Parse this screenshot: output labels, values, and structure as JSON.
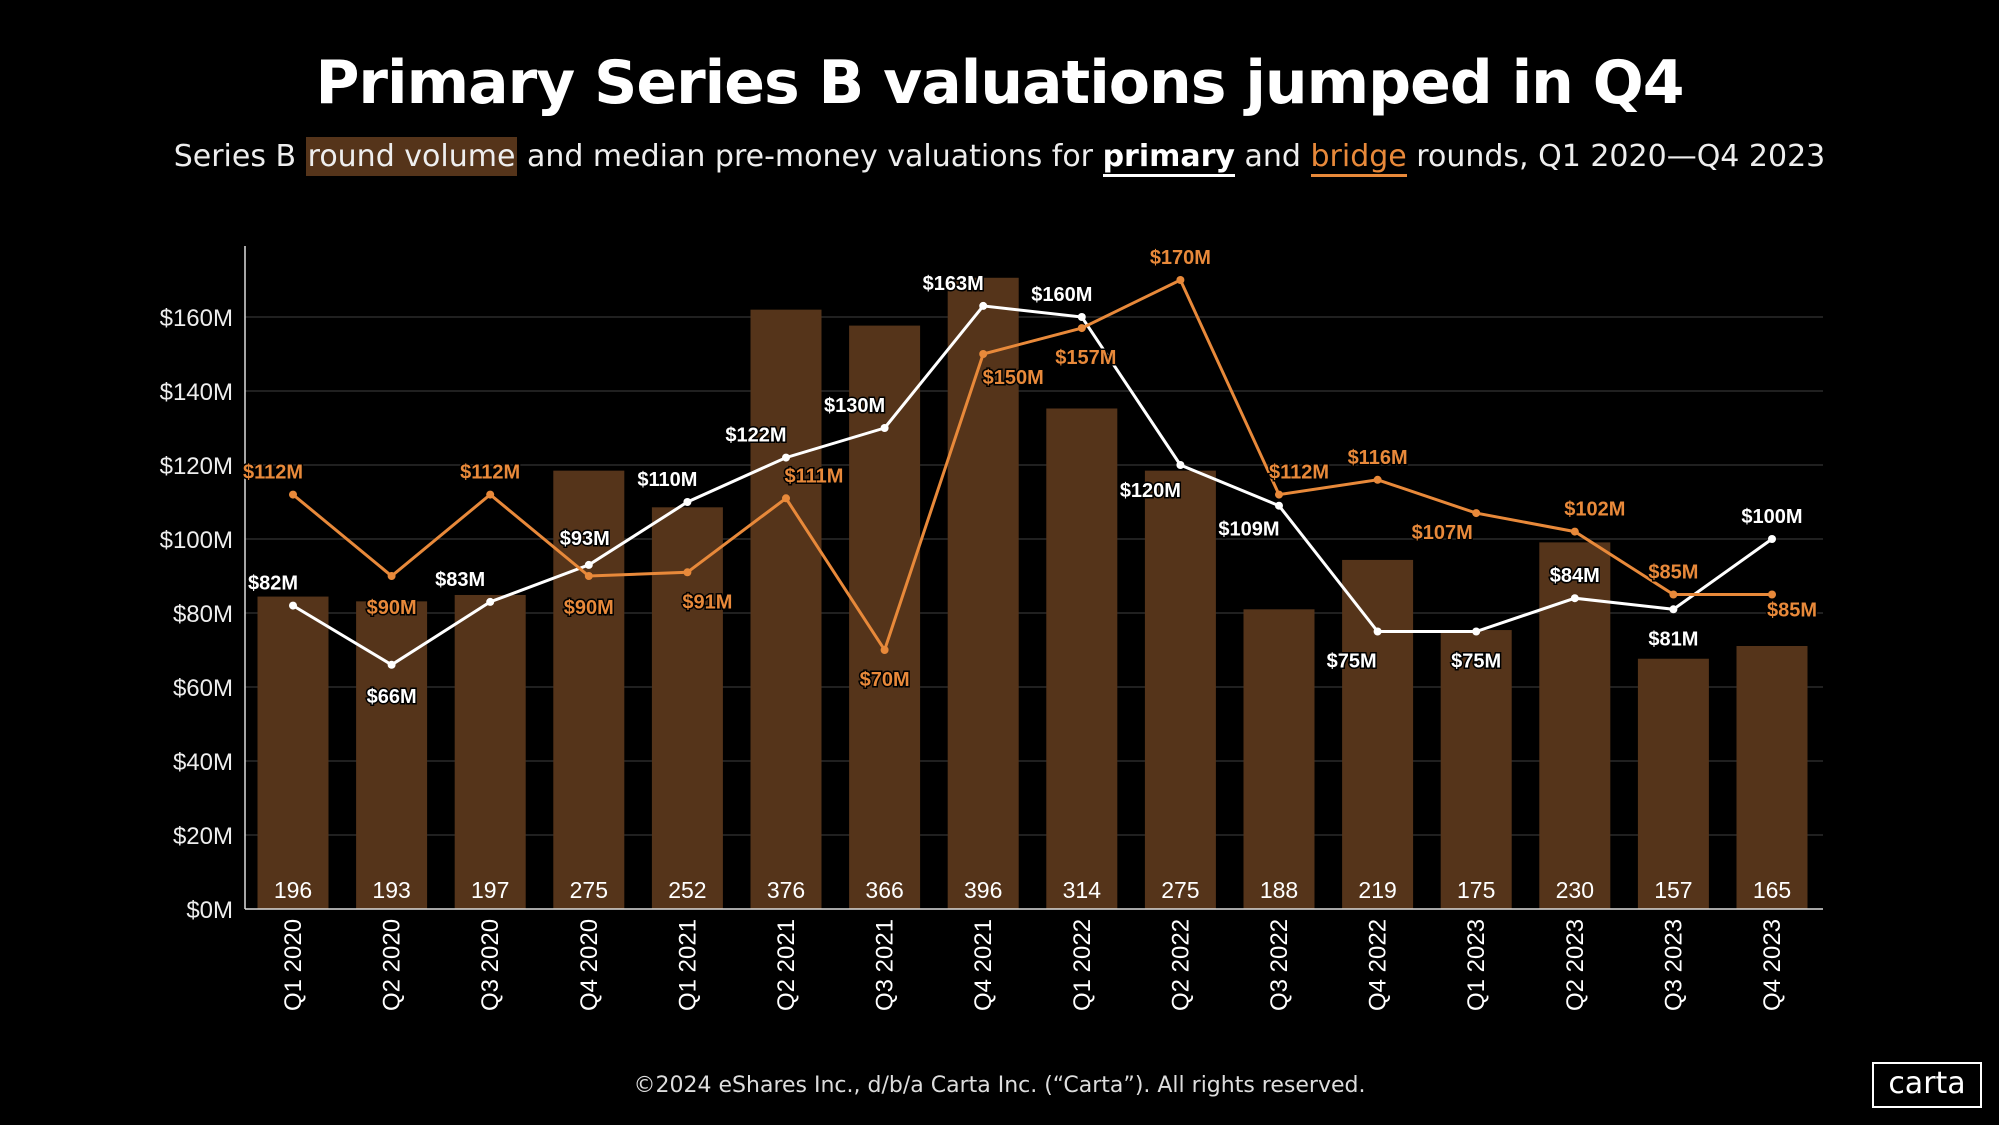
{
  "title": "Primary Series B valuations jumped in Q4",
  "subtitle": {
    "prefix": "Series B ",
    "highlight": "round volume",
    "middle": " and median pre-money valuations for ",
    "primary": "primary",
    "and": " and ",
    "bridge": "bridge",
    "suffix": " rounds, Q1 2020—Q4 2023"
  },
  "footer": "©2024 eShares Inc., d/b/a Carta Inc. (“Carta”). All rights reserved.",
  "logo": "carta",
  "colors": {
    "bars": "#55341a",
    "primary": "#ffffff",
    "bridge": "#e8893a",
    "gridline": "#2a2a2a"
  },
  "chart_data": {
    "type": "bar+line",
    "categories": [
      "Q1 2020",
      "Q2 2020",
      "Q3 2020",
      "Q4 2020",
      "Q1 2021",
      "Q2 2021",
      "Q3 2021",
      "Q4 2021",
      "Q1 2022",
      "Q2 2022",
      "Q3 2022",
      "Q4 2022",
      "Q1 2023",
      "Q2 2023",
      "Q3 2023",
      "Q4 2023"
    ],
    "yticks": [
      "$0M",
      "$20M",
      "$40M",
      "$60M",
      "$80M",
      "$100M",
      "$120M",
      "$140M",
      "$160M"
    ],
    "ylim": [
      0,
      180
    ],
    "grid": true,
    "round_volume": [
      196,
      193,
      197,
      275,
      252,
      376,
      366,
      396,
      314,
      275,
      188,
      219,
      175,
      230,
      157,
      165
    ],
    "series": [
      {
        "name": "primary",
        "values": [
          82,
          66,
          83,
          93,
          110,
          122,
          130,
          163,
          160,
          120,
          109,
          75,
          75,
          84,
          81,
          100
        ],
        "labels": [
          "$82M",
          "$66M",
          "$83M",
          "$93M",
          "$110M",
          "$122M",
          "$130M",
          "$163M",
          "$160M",
          "$120M",
          "$109M",
          "$75M",
          "$75M",
          "$84M",
          "$81M",
          "$100M"
        ]
      },
      {
        "name": "bridge",
        "values": [
          112,
          90,
          112,
          90,
          91,
          111,
          70,
          150,
          157,
          170,
          112,
          116,
          107,
          102,
          85,
          85
        ],
        "labels": [
          "$112M",
          "$90M",
          "$112M",
          "$90M",
          "$91M",
          "$111M",
          "$70M",
          "$150M",
          "$157M",
          "$170M",
          "$112M",
          "$116M",
          "$107M",
          "$102M",
          "$85M",
          "$85M"
        ]
      }
    ]
  }
}
